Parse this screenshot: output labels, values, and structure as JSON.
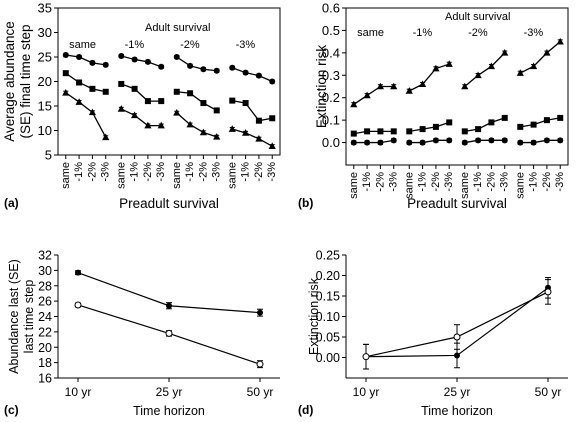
{
  "chart_data": [
    {
      "type": "line",
      "panel_label": "(a)",
      "ylabel_lines": [
        "Average abundance",
        "(SE) final time step"
      ],
      "xlabel": "Preadult survival",
      "annotation": "Adult survival",
      "ylim": [
        5,
        35
      ],
      "yticks": [
        5,
        10,
        15,
        20,
        25,
        30,
        35
      ],
      "group_labels": [
        "same",
        "-1%",
        "-2%",
        "-3%"
      ],
      "categories": [
        "same",
        "-1%",
        "-2%",
        "-3%"
      ],
      "series": [
        {
          "marker": "circle",
          "groups": [
            [
              25.4,
              25.0,
              23.8,
              23.4
            ],
            [
              25.2,
              24.5,
              24.0,
              23.0
            ],
            [
              25.0,
              23.2,
              22.5,
              22.2
            ],
            [
              22.8,
              21.8,
              21.2,
              20.0
            ]
          ]
        },
        {
          "marker": "square",
          "groups": [
            [
              21.7,
              19.8,
              18.5,
              17.9
            ],
            [
              19.5,
              18.5,
              16.0,
              16.0
            ],
            [
              17.9,
              17.6,
              15.6,
              14.1
            ],
            [
              16.1,
              15.6,
              12.0,
              12.5
            ]
          ]
        },
        {
          "marker": "triangle",
          "groups": [
            [
              17.7,
              15.8,
              13.7,
              8.6
            ],
            [
              14.4,
              13.1,
              11.0,
              11.0
            ],
            [
              13.6,
              11.2,
              9.6,
              8.7
            ],
            [
              10.3,
              9.5,
              8.3,
              6.8
            ]
          ]
        }
      ]
    },
    {
      "type": "line",
      "panel_label": "(b)",
      "ylabel_lines": [
        "Extinction  risk"
      ],
      "xlabel": "Preadult survival",
      "annotation": "Adult survival",
      "ylim": [
        -0.1,
        0.6
      ],
      "yticks": [
        0.0,
        0.1,
        0.2,
        0.3,
        0.4,
        0.5,
        0.6
      ],
      "group_labels": [
        "same",
        "-1%",
        "-2%",
        "-3%"
      ],
      "categories": [
        "same",
        "-1%",
        "-2%",
        "-3%"
      ],
      "series": [
        {
          "marker": "triangle",
          "groups": [
            [
              0.17,
              0.21,
              0.25,
              0.25
            ],
            [
              0.23,
              0.26,
              0.33,
              0.35
            ],
            [
              0.25,
              0.3,
              0.34,
              0.4
            ],
            [
              0.31,
              0.34,
              0.4,
              0.45
            ]
          ]
        },
        {
          "marker": "square",
          "groups": [
            [
              0.04,
              0.05,
              0.05,
              0.05
            ],
            [
              0.05,
              0.06,
              0.07,
              0.09
            ],
            [
              0.05,
              0.06,
              0.09,
              0.11
            ],
            [
              0.07,
              0.08,
              0.1,
              0.11
            ]
          ]
        },
        {
          "marker": "circle",
          "groups": [
            [
              0.0,
              0.0,
              0.0,
              0.01
            ],
            [
              0.0,
              0.0,
              0.01,
              0.01
            ],
            [
              0.0,
              0.01,
              0.01,
              0.01
            ],
            [
              0.0,
              0.0,
              0.01,
              0.01
            ]
          ]
        }
      ]
    },
    {
      "type": "line",
      "panel_label": "(c)",
      "ylabel_lines": [
        "Abundance last (SE)",
        "last time step"
      ],
      "xlabel": "Time horizon",
      "categories": [
        "10 yr",
        "25 yr",
        "50 yr"
      ],
      "ylim": [
        16,
        32
      ],
      "yticks": [
        16,
        18,
        20,
        22,
        24,
        26,
        28,
        30,
        32
      ],
      "series": [
        {
          "marker": "filled-circle",
          "values": [
            29.7,
            25.4,
            24.5
          ],
          "errors": [
            0.25,
            0.4,
            0.45
          ]
        },
        {
          "marker": "open-circle",
          "values": [
            25.5,
            21.8,
            17.8
          ],
          "errors": [
            0.25,
            0.35,
            0.45
          ]
        }
      ]
    },
    {
      "type": "line",
      "panel_label": "(d)",
      "ylabel_lines": [
        "Extinction risk"
      ],
      "xlabel": "Time horizon",
      "categories": [
        "10 yr",
        "25 yr",
        "50 yr"
      ],
      "ylim": [
        -0.05,
        0.25
      ],
      "yticks": [
        0.0,
        0.05,
        0.1,
        0.15,
        0.2,
        0.25
      ],
      "series": [
        {
          "marker": "filled-circle",
          "values": [
            0.002,
            0.005,
            0.17
          ],
          "errors": [
            0.03,
            0.03,
            0.025
          ]
        },
        {
          "marker": "open-circle",
          "values": [
            0.002,
            0.05,
            0.16
          ],
          "errors": [
            0.03,
            0.03,
            0.03
          ]
        }
      ]
    }
  ]
}
